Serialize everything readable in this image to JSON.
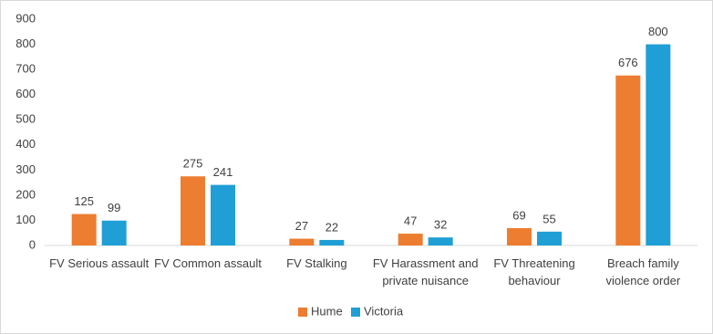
{
  "chart_data": {
    "type": "bar",
    "categories": [
      "FV Serious assault",
      "FV Common assault",
      "FV Stalking",
      "FV Harassment and private nuisance",
      "FV Threatening behaviour",
      "Breach family violence order"
    ],
    "series": [
      {
        "name": "Hume",
        "color": "#ed7d31",
        "values": [
          125,
          275,
          27,
          47,
          69,
          676
        ]
      },
      {
        "name": "Victoria",
        "color": "#1f9fd5",
        "values": [
          99,
          241,
          22,
          32,
          55,
          800
        ]
      }
    ],
    "ylim": [
      0,
      900
    ],
    "yticks": [
      0,
      100,
      200,
      300,
      400,
      500,
      600,
      700,
      800,
      900
    ],
    "grid": false,
    "legend": "bottom"
  }
}
